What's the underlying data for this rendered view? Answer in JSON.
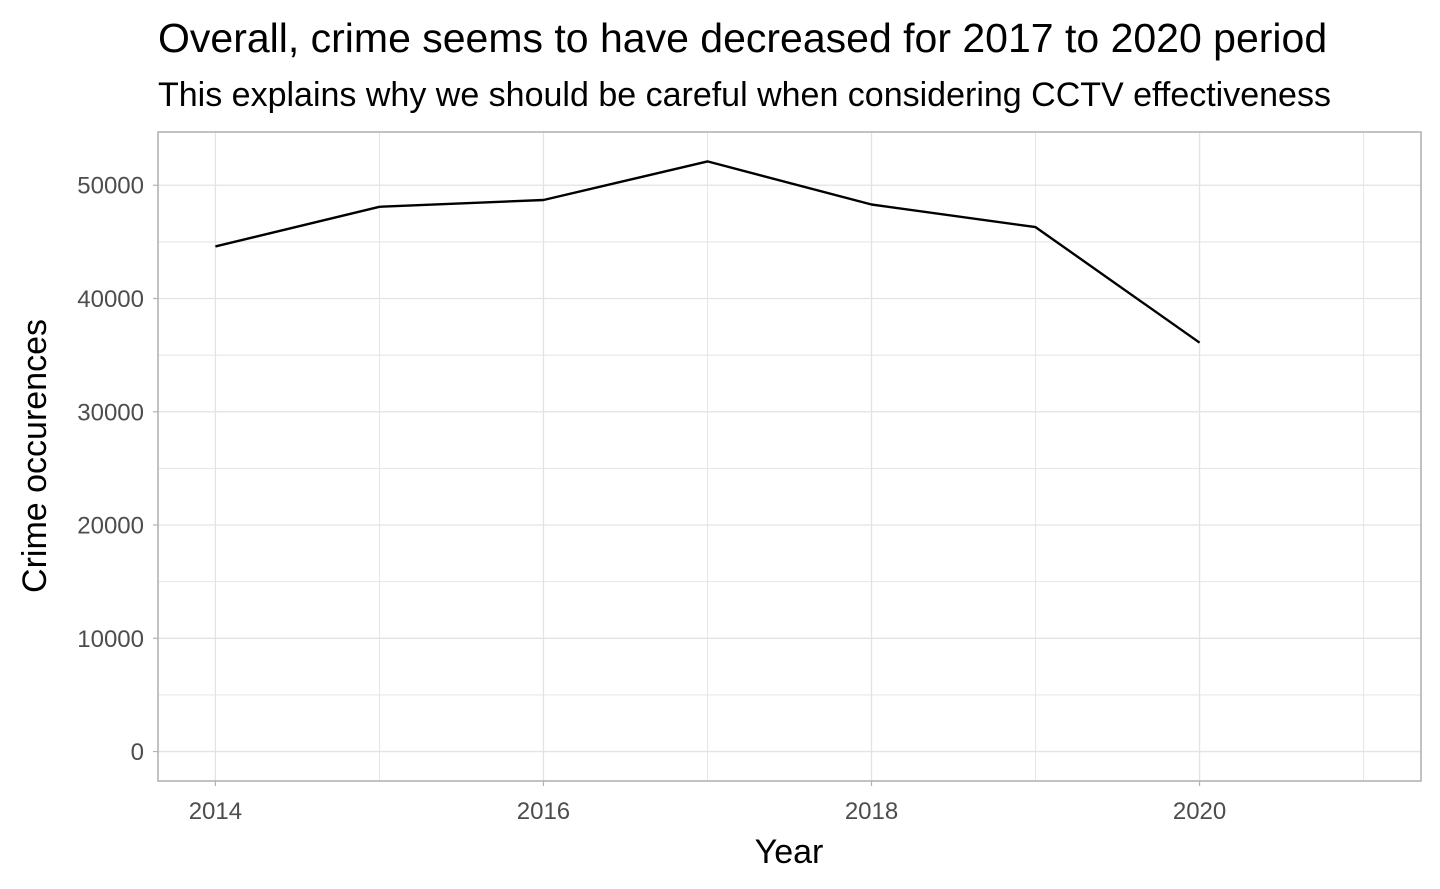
{
  "chart_data": {
    "type": "line",
    "title": "Overall, crime seems to have decreased for 2017 to 2020 period",
    "subtitle": "This explains why we should be careful when considering CCTV effectiveness",
    "xlabel": "Year",
    "ylabel": "Crime occurences",
    "x": [
      2014,
      2015,
      2016,
      2017,
      2018,
      2019,
      2020
    ],
    "series": [
      {
        "values": [
          44600,
          48100,
          48700,
          52100,
          48300,
          46300,
          36100
        ]
      }
    ],
    "xlim": [
      2013.65,
      2021.35
    ],
    "ylim": [
      -2600,
      54700
    ],
    "x_ticks": [
      2014,
      2016,
      2018,
      2020
    ],
    "x_tick_labels": [
      "2014",
      "2016",
      "2018",
      "2020"
    ],
    "y_ticks": [
      0,
      10000,
      20000,
      30000,
      40000,
      50000
    ],
    "y_tick_labels": [
      "0",
      "10000",
      "20000",
      "30000",
      "40000",
      "50000"
    ],
    "grid": true,
    "theme": "light",
    "line_color": "#000000",
    "grid_color": "#e3e3e3",
    "panel_border_color": "#b3b3b3"
  }
}
